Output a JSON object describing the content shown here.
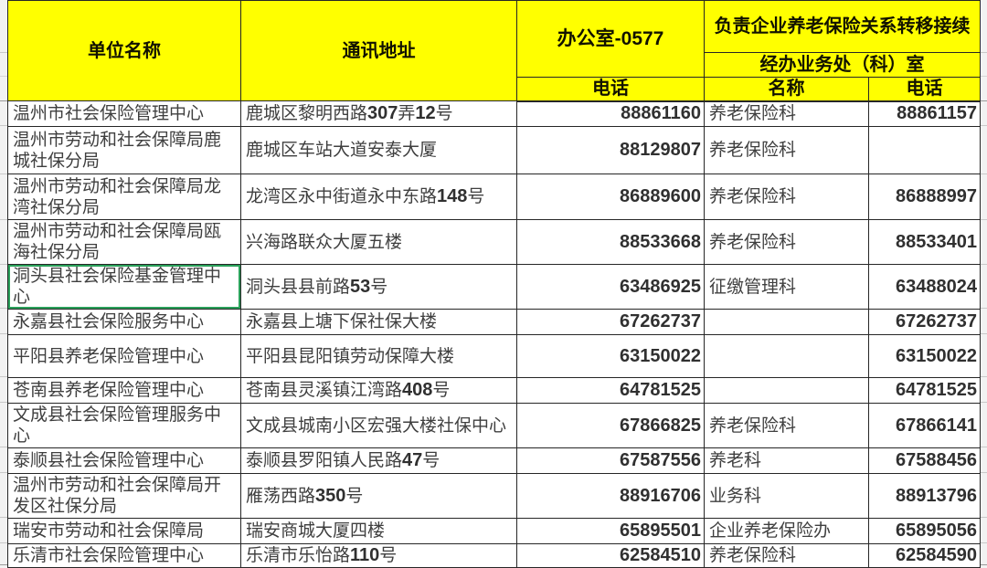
{
  "table": {
    "header": {
      "unit": "单位名称",
      "address": "通讯地址",
      "office": "办公室-0577",
      "transfer": "负责企业养老保险关系转移接续",
      "dept_office": "经办业务处（科）室",
      "phone": "电话",
      "dept_name": "名称",
      "dept_phone": "电话"
    },
    "rows": [
      {
        "unit": "温州市社会保险管理中心",
        "address": "鹿城区黎明西路307弄12号",
        "phone": "88861160",
        "dept": "养老保险科",
        "dept_phone": "88861157"
      },
      {
        "unit": "温州市劳动和社会保障局鹿城社保分局",
        "address": "鹿城区车站大道安泰大厦",
        "phone": "88129807",
        "dept": "养老保险科",
        "dept_phone": ""
      },
      {
        "unit": "温州市劳动和社会保障局龙湾社保分局",
        "address": "龙湾区永中街道永中东路148号",
        "phone": "86889600",
        "dept": "养老保险科",
        "dept_phone": "86888997"
      },
      {
        "unit": "温州市劳动和社会保障局瓯海社保分局",
        "address": "兴海路联众大厦五楼",
        "phone": "88533668",
        "dept": "养老保险科",
        "dept_phone": "88533401"
      },
      {
        "unit": "洞头县社会保险基金管理中心",
        "address": "洞头县县前路53号",
        "phone": "63486925",
        "dept": "征缴管理科",
        "dept_phone": "63488024"
      },
      {
        "unit": "永嘉县社会保险服务中心",
        "address": "永嘉县上塘下保社保大楼",
        "phone": "67262737",
        "dept": "",
        "dept_phone": "67262737"
      },
      {
        "unit": "平阳县养老保险管理中心",
        "address": "平阳县昆阳镇劳动保障大楼",
        "phone": "63150022",
        "dept": "",
        "dept_phone": "63150022"
      },
      {
        "unit": "苍南县养老保险管理中心",
        "address": "苍南县灵溪镇江湾路408号",
        "phone": "64781525",
        "dept": "",
        "dept_phone": "64781525"
      },
      {
        "unit": "文成县社会保险管理服务中心",
        "address": "文成县城南小区宏强大楼社保中心",
        "phone": "67866825",
        "dept": "养老保险科",
        "dept_phone": "67866141"
      },
      {
        "unit": "泰顺县社会保险管理中心",
        "address": "泰顺县罗阳镇人民路47号",
        "phone": "67587556",
        "dept": "养老科",
        "dept_phone": "67588456"
      },
      {
        "unit": "温州市劳动和社会保障局开发区社保分局",
        "address": "雁荡西路350号",
        "phone": "88916706",
        "dept": "业务科",
        "dept_phone": "88913796"
      },
      {
        "unit": "瑞安市劳动和社会保障局",
        "address": "瑞安商城大厦四楼",
        "phone": "65895501",
        "dept": "企业养老保险办",
        "dept_phone": "65895056"
      },
      {
        "unit": "乐清市社会保险管理中心",
        "address": "乐清市乐怡路110号",
        "phone": "62584510",
        "dept": "养老保险科",
        "dept_phone": "62584590"
      }
    ],
    "selected_cell": {
      "row_index": 4,
      "column": "unit"
    }
  },
  "colors": {
    "header_bg": "#ffff00",
    "selection_green": "#2aa05a",
    "grid_border": "#262626"
  }
}
